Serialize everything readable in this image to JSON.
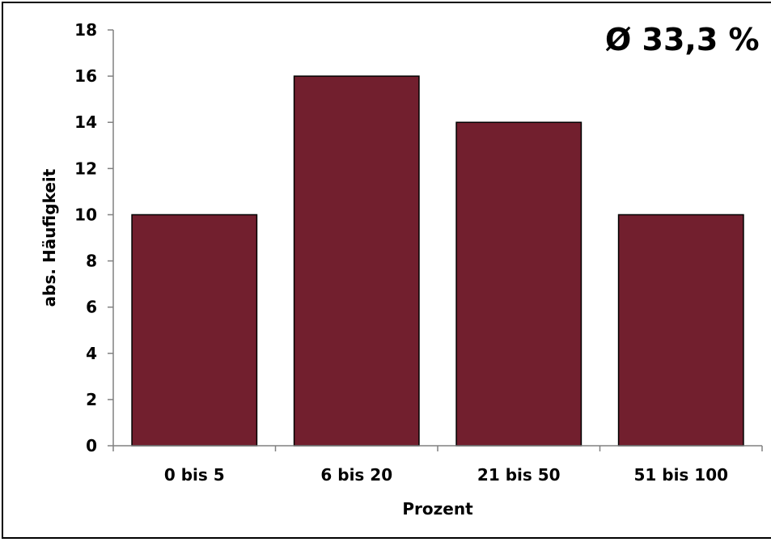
{
  "chart_data": {
    "type": "bar",
    "title": "",
    "xlabel": "Prozent",
    "ylabel": "abs. Häufigkeit",
    "categories": [
      "0 bis 5",
      "6 bis 20",
      "21 bis 50",
      "51 bis 100"
    ],
    "values": [
      10,
      16,
      14,
      10
    ],
    "ylim": [
      0,
      18
    ],
    "yticks": [
      "0",
      "2",
      "4",
      "6",
      "8",
      "10",
      "12",
      "14",
      "16",
      "18"
    ],
    "annotation": "Ø 33,3 %",
    "grid": false,
    "legend": "none",
    "bar_color": "#721f2e",
    "bar_edge_color": "#000000"
  }
}
